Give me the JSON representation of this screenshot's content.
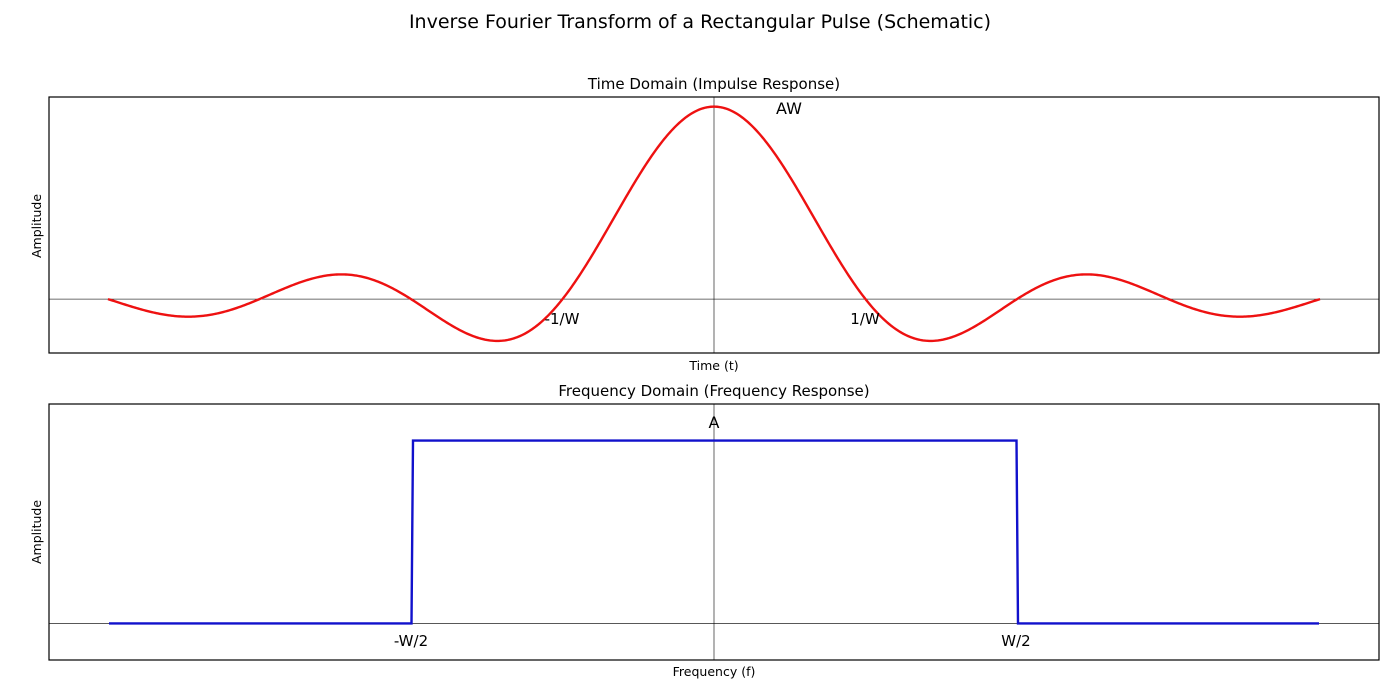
{
  "title": "Inverse Fourier Transform of a Rectangular Pulse (Schematic)",
  "chart_data": [
    {
      "type": "line",
      "title": "Time Domain (Impulse Response)",
      "xlabel": "Time (t)",
      "ylabel": "Amplitude",
      "function": "sinc",
      "x_range_in_zero_crossings": [
        -4,
        4
      ],
      "y_range": [
        -0.28,
        1.05
      ],
      "peak_value": 1.0,
      "zero_lines": true,
      "grid": false,
      "series": [
        {
          "values_description_free": true,
          "color": "#ee1111"
        }
      ],
      "annotations": [
        {
          "text": "AW",
          "x_units": 0.5,
          "y": 1.0
        },
        {
          "text": "-1/W",
          "x_units": -1,
          "y": -0.1
        },
        {
          "text": "1/W",
          "x_units": 1,
          "y": -0.1
        }
      ]
    },
    {
      "type": "line",
      "title": "Frequency Domain (Frequency Response)",
      "xlabel": "Frequency (f)",
      "ylabel": "Amplitude",
      "x": [
        -2,
        -1,
        -1,
        1,
        1,
        2
      ],
      "y": [
        0,
        0,
        1,
        1,
        0,
        0
      ],
      "x_range": [
        -2.2,
        2.2
      ],
      "y_range": [
        -0.2,
        1.2
      ],
      "zero_lines": true,
      "grid": false,
      "series": [
        {
          "color": "#1111cc"
        }
      ],
      "annotations": [
        {
          "text": "A",
          "x": 0,
          "y": 1.07
        },
        {
          "text": "-W/2",
          "x": -1,
          "y": -0.1
        },
        {
          "text": "W/2",
          "x": 1,
          "y": -0.1
        }
      ]
    }
  ]
}
